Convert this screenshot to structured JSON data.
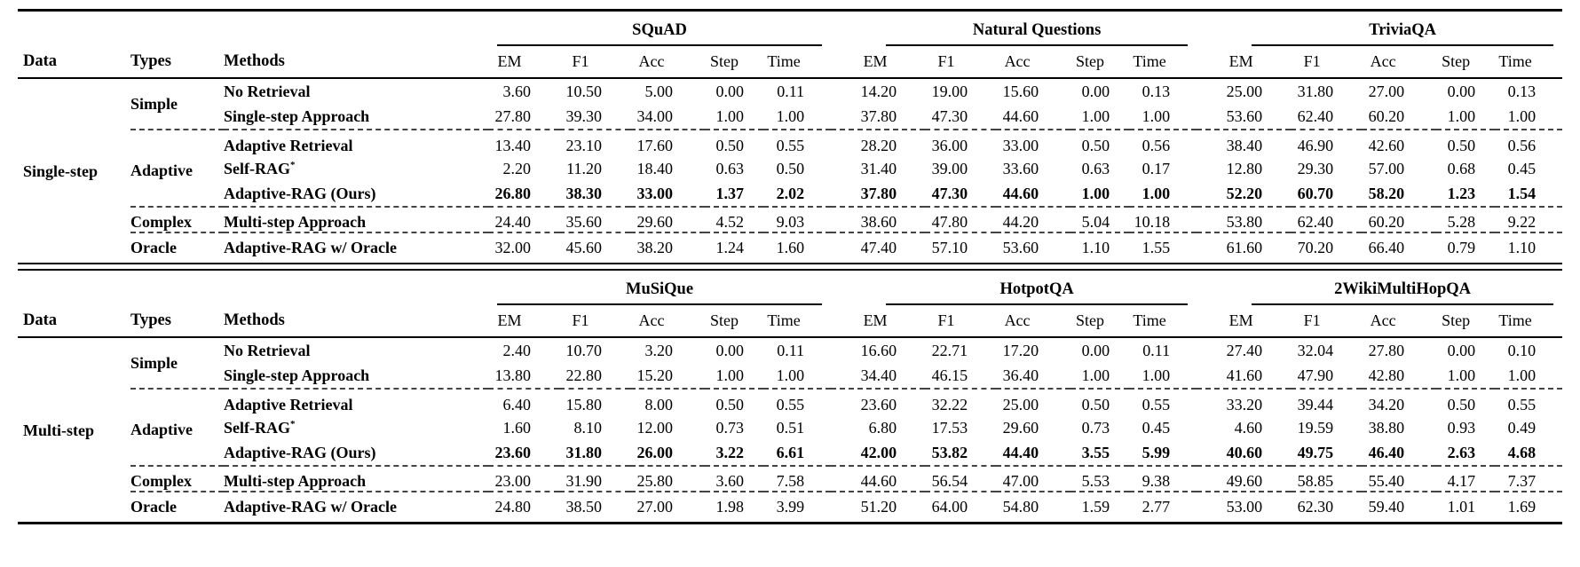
{
  "colors": {
    "text": "#000000",
    "background": "#ffffff",
    "rule": "#000000",
    "dashed_line": "#444444"
  },
  "column_headers": {
    "data": "Data",
    "types": "Types",
    "methods": "Methods"
  },
  "metric_headers": [
    "EM",
    "F1",
    "Acc",
    "Step",
    "Time"
  ],
  "tables": [
    {
      "data_label": "Single-step",
      "datasets": [
        "SQuAD",
        "Natural Questions",
        "TriviaQA"
      ],
      "groups": [
        {
          "type": "Simple",
          "rows": [
            {
              "method": "No Retrieval",
              "bold": false,
              "values": [
                [
                  "3.60",
                  "10.50",
                  "5.00",
                  "0.00",
                  "0.11"
                ],
                [
                  "14.20",
                  "19.00",
                  "15.60",
                  "0.00",
                  "0.13"
                ],
                [
                  "25.00",
                  "31.80",
                  "27.00",
                  "0.00",
                  "0.13"
                ]
              ]
            },
            {
              "method": "Single-step Approach",
              "bold": false,
              "values": [
                [
                  "27.80",
                  "39.30",
                  "34.00",
                  "1.00",
                  "1.00"
                ],
                [
                  "37.80",
                  "47.30",
                  "44.60",
                  "1.00",
                  "1.00"
                ],
                [
                  "53.60",
                  "62.40",
                  "60.20",
                  "1.00",
                  "1.00"
                ]
              ]
            }
          ]
        },
        {
          "type": "Adaptive",
          "rows": [
            {
              "method": "Adaptive Retrieval",
              "bold": false,
              "values": [
                [
                  "13.40",
                  "23.10",
                  "17.60",
                  "0.50",
                  "0.55"
                ],
                [
                  "28.20",
                  "36.00",
                  "33.00",
                  "0.50",
                  "0.56"
                ],
                [
                  "38.40",
                  "46.90",
                  "42.60",
                  "0.50",
                  "0.56"
                ]
              ]
            },
            {
              "method": "Self-RAG*",
              "bold": false,
              "values": [
                [
                  "2.20",
                  "11.20",
                  "18.40",
                  "0.63",
                  "0.50"
                ],
                [
                  "31.40",
                  "39.00",
                  "33.60",
                  "0.63",
                  "0.17"
                ],
                [
                  "12.80",
                  "29.30",
                  "57.00",
                  "0.68",
                  "0.45"
                ]
              ]
            },
            {
              "method": "Adaptive-RAG (Ours)",
              "bold": true,
              "values": [
                [
                  "26.80",
                  "38.30",
                  "33.00",
                  "1.37",
                  "2.02"
                ],
                [
                  "37.80",
                  "47.30",
                  "44.60",
                  "1.00",
                  "1.00"
                ],
                [
                  "52.20",
                  "60.70",
                  "58.20",
                  "1.23",
                  "1.54"
                ]
              ]
            }
          ]
        },
        {
          "type": "Complex",
          "rows": [
            {
              "method": "Multi-step Approach",
              "bold": false,
              "values": [
                [
                  "24.40",
                  "35.60",
                  "29.60",
                  "4.52",
                  "9.03"
                ],
                [
                  "38.60",
                  "47.80",
                  "44.20",
                  "5.04",
                  "10.18"
                ],
                [
                  "53.80",
                  "62.40",
                  "60.20",
                  "5.28",
                  "9.22"
                ]
              ]
            }
          ]
        },
        {
          "type": "Oracle",
          "rows": [
            {
              "method": "Adaptive-RAG w/ Oracle",
              "bold": false,
              "values": [
                [
                  "32.00",
                  "45.60",
                  "38.20",
                  "1.24",
                  "1.60"
                ],
                [
                  "47.40",
                  "57.10",
                  "53.60",
                  "1.10",
                  "1.55"
                ],
                [
                  "61.60",
                  "70.20",
                  "66.40",
                  "0.79",
                  "1.10"
                ]
              ]
            }
          ]
        }
      ]
    },
    {
      "data_label": "Multi-step",
      "datasets": [
        "MuSiQue",
        "HotpotQA",
        "2WikiMultiHopQA"
      ],
      "groups": [
        {
          "type": "Simple",
          "rows": [
            {
              "method": "No Retrieval",
              "bold": false,
              "values": [
                [
                  "2.40",
                  "10.70",
                  "3.20",
                  "0.00",
                  "0.11"
                ],
                [
                  "16.60",
                  "22.71",
                  "17.20",
                  "0.00",
                  "0.11"
                ],
                [
                  "27.40",
                  "32.04",
                  "27.80",
                  "0.00",
                  "0.10"
                ]
              ]
            },
            {
              "method": "Single-step Approach",
              "bold": false,
              "values": [
                [
                  "13.80",
                  "22.80",
                  "15.20",
                  "1.00",
                  "1.00"
                ],
                [
                  "34.40",
                  "46.15",
                  "36.40",
                  "1.00",
                  "1.00"
                ],
                [
                  "41.60",
                  "47.90",
                  "42.80",
                  "1.00",
                  "1.00"
                ]
              ]
            }
          ]
        },
        {
          "type": "Adaptive",
          "rows": [
            {
              "method": "Adaptive Retrieval",
              "bold": false,
              "values": [
                [
                  "6.40",
                  "15.80",
                  "8.00",
                  "0.50",
                  "0.55"
                ],
                [
                  "23.60",
                  "32.22",
                  "25.00",
                  "0.50",
                  "0.55"
                ],
                [
                  "33.20",
                  "39.44",
                  "34.20",
                  "0.50",
                  "0.55"
                ]
              ]
            },
            {
              "method": "Self-RAG*",
              "bold": false,
              "values": [
                [
                  "1.60",
                  "8.10",
                  "12.00",
                  "0.73",
                  "0.51"
                ],
                [
                  "6.80",
                  "17.53",
                  "29.60",
                  "0.73",
                  "0.45"
                ],
                [
                  "4.60",
                  "19.59",
                  "38.80",
                  "0.93",
                  "0.49"
                ]
              ]
            },
            {
              "method": "Adaptive-RAG (Ours)",
              "bold": true,
              "values": [
                [
                  "23.60",
                  "31.80",
                  "26.00",
                  "3.22",
                  "6.61"
                ],
                [
                  "42.00",
                  "53.82",
                  "44.40",
                  "3.55",
                  "5.99"
                ],
                [
                  "40.60",
                  "49.75",
                  "46.40",
                  "2.63",
                  "4.68"
                ]
              ]
            }
          ]
        },
        {
          "type": "Complex",
          "rows": [
            {
              "method": "Multi-step Approach",
              "bold": false,
              "values": [
                [
                  "23.00",
                  "31.90",
                  "25.80",
                  "3.60",
                  "7.58"
                ],
                [
                  "44.60",
                  "56.54",
                  "47.00",
                  "5.53",
                  "9.38"
                ],
                [
                  "49.60",
                  "58.85",
                  "55.40",
                  "4.17",
                  "7.37"
                ]
              ]
            }
          ]
        },
        {
          "type": "Oracle",
          "rows": [
            {
              "method": "Adaptive-RAG w/ Oracle",
              "bold": false,
              "values": [
                [
                  "24.80",
                  "38.50",
                  "27.00",
                  "1.98",
                  "3.99"
                ],
                [
                  "51.20",
                  "64.00",
                  "54.80",
                  "1.59",
                  "2.77"
                ],
                [
                  "53.00",
                  "62.30",
                  "59.40",
                  "1.01",
                  "1.69"
                ]
              ]
            }
          ]
        }
      ]
    }
  ]
}
